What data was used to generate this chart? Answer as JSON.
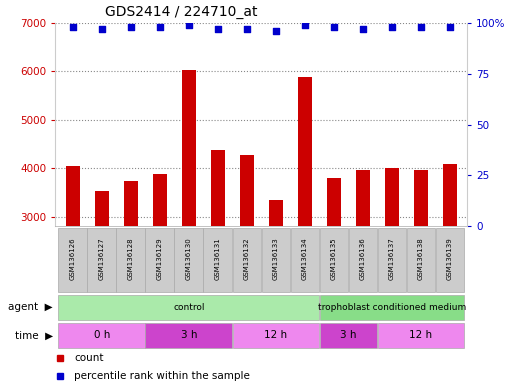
{
  "title": "GDS2414 / 224710_at",
  "samples": [
    "GSM136126",
    "GSM136127",
    "GSM136128",
    "GSM136129",
    "GSM136130",
    "GSM136131",
    "GSM136132",
    "GSM136133",
    "GSM136134",
    "GSM136135",
    "GSM136136",
    "GSM136137",
    "GSM136138",
    "GSM136139"
  ],
  "bar_values": [
    4050,
    3520,
    3730,
    3880,
    6020,
    4380,
    4270,
    3340,
    5890,
    3790,
    3960,
    4010,
    3960,
    4080
  ],
  "percentile_values": [
    98,
    97,
    98,
    98,
    99,
    97,
    97,
    96,
    99,
    98,
    97,
    98,
    98,
    98
  ],
  "bar_color": "#cc0000",
  "dot_color": "#0000cc",
  "ylim_left": [
    2800,
    7000
  ],
  "ylim_right": [
    0,
    100
  ],
  "yticks_left": [
    3000,
    4000,
    5000,
    6000,
    7000
  ],
  "yticks_right": [
    0,
    25,
    50,
    75,
    100
  ],
  "grid_color": "#aaaaaa",
  "agent_groups": [
    {
      "label": "control",
      "start": 0,
      "end": 9,
      "color": "#aaeaaa"
    },
    {
      "label": "trophoblast conditioned medium",
      "start": 9,
      "end": 14,
      "color": "#88dd88"
    }
  ],
  "time_groups": [
    {
      "label": "0 h",
      "start": 0,
      "end": 3,
      "color": "#ee88ee"
    },
    {
      "label": "3 h",
      "start": 3,
      "end": 6,
      "color": "#cc44cc"
    },
    {
      "label": "12 h",
      "start": 6,
      "end": 9,
      "color": "#ee88ee"
    },
    {
      "label": "3 h",
      "start": 9,
      "end": 11,
      "color": "#cc44cc"
    },
    {
      "label": "12 h",
      "start": 11,
      "end": 14,
      "color": "#ee88ee"
    }
  ],
  "title_color": "#000000",
  "left_tick_color": "#cc0000",
  "right_tick_color": "#0000cc",
  "legend_count_color": "#cc0000",
  "legend_pct_color": "#0000cc",
  "sample_box_color": "#cccccc",
  "n_samples": 14,
  "fig_width": 5.28,
  "fig_height": 3.84,
  "dpi": 100
}
